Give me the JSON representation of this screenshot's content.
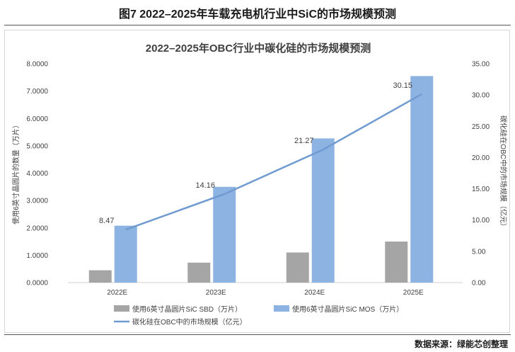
{
  "figure_title": "图7 2022–2025年车载充电机行业中SiC的市场规模预测",
  "source": "数据来源：绿能芯创整理",
  "colors": {
    "sbd": "#a5a5a5",
    "mos": "#8db3e2",
    "line": "#6f9bd1"
  },
  "chart_data": {
    "type": "bar",
    "title": "2022–2025年OBC行业中碳化硅的市场规模预测",
    "categories": [
      "2022E",
      "2023E",
      "2024E",
      "2025E"
    ],
    "series": [
      {
        "name": "使用6英寸晶圆片SiC SBD（万片）",
        "type": "bar",
        "axis": "left",
        "values": [
          0.45,
          0.73,
          1.1,
          1.5
        ]
      },
      {
        "name": "使用6英寸晶圆片SiC MOS（万片）",
        "type": "bar",
        "axis": "left",
        "values": [
          2.08,
          3.5,
          5.27,
          7.55
        ]
      },
      {
        "name": "碳化硅在OBC中的市场规模（亿元）",
        "type": "line",
        "axis": "right",
        "values": [
          8.47,
          14.16,
          21.27,
          30.15
        ]
      }
    ],
    "data_labels": [
      "8.47",
      "14.16",
      "21.27",
      "30.15"
    ],
    "ylabel_left": "使用6英寸晶圆片的数量（万片）",
    "ylabel_right": "碳化硅在OBC中的市场规模（亿元）",
    "ylim_left": [
      0,
      8
    ],
    "ylim_right": [
      0,
      35
    ],
    "yticks_left": [
      "0.0000",
      "1.0000",
      "2.0000",
      "3.0000",
      "4.0000",
      "5.0000",
      "6.0000",
      "7.0000",
      "8.0000"
    ],
    "yticks_right": [
      "0.00",
      "5.00",
      "10.00",
      "15.00",
      "20.00",
      "25.00",
      "30.00",
      "35.00"
    ],
    "grid": false,
    "legend_position": "bottom"
  }
}
